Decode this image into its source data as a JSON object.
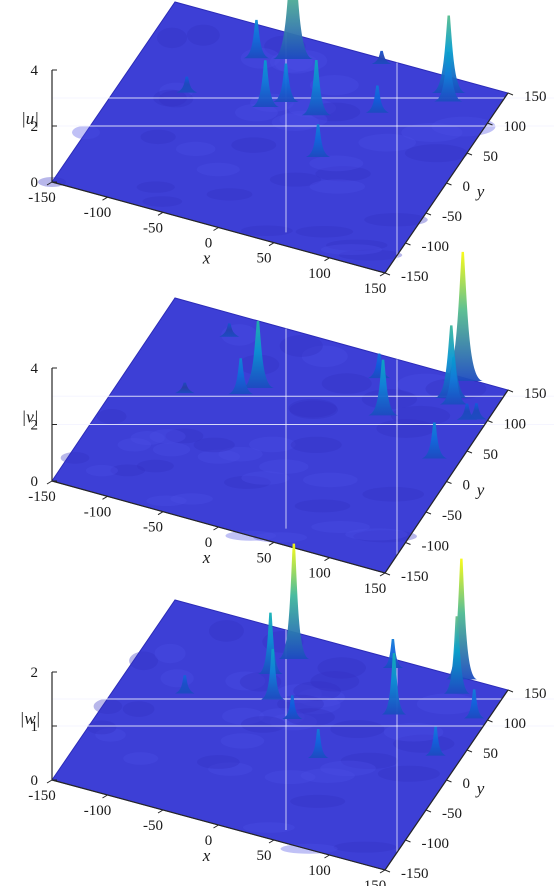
{
  "chart_data": [
    {
      "type": "surface",
      "zlabel": "|u|",
      "xlabel": "x",
      "ylabel": "y",
      "xlim": [
        -150,
        150
      ],
      "ylim": [
        -150,
        150
      ],
      "zlim": [
        0,
        4
      ],
      "xticks": [
        "-150",
        "-100",
        "-50",
        "0",
        "50",
        "100",
        "150"
      ],
      "yticks": [
        "-150",
        "-100",
        "-50",
        "0",
        "50",
        "100",
        "150"
      ],
      "zticks": [
        "0",
        "2",
        "4"
      ],
      "grid": true,
      "colormap": "parula",
      "peaks": [
        {
          "x": -32,
          "y": 118,
          "z": 4.5
        },
        {
          "x": -60,
          "y": 105,
          "z": 1.3
        },
        {
          "x": -28,
          "y": 40,
          "z": 1.6
        },
        {
          "x": -15,
          "y": 55,
          "z": 1.3
        },
        {
          "x": 15,
          "y": 48,
          "z": 1.9
        },
        {
          "x": 104,
          "y": 130,
          "z": 2.7
        },
        {
          "x": 108,
          "y": 118,
          "z": 1.7
        },
        {
          "x": 60,
          "y": 75,
          "z": 0.9
        },
        {
          "x": 38,
          "y": -10,
          "z": 1.1
        },
        {
          "x": -95,
          "y": 30,
          "z": 0.5
        },
        {
          "x": 38,
          "y": 145,
          "z": 0.4
        }
      ]
    },
    {
      "type": "surface",
      "zlabel": "|v|",
      "xlabel": "x",
      "ylabel": "y",
      "xlim": [
        -150,
        150
      ],
      "ylim": [
        -150,
        150
      ],
      "zlim": [
        0,
        4
      ],
      "xticks": [
        "-150",
        "-100",
        "-50",
        "0",
        "50",
        "100",
        "150"
      ],
      "yticks": [
        "-150",
        "-100",
        "-50",
        "0",
        "50",
        "100",
        "150"
      ],
      "zticks": [
        "0",
        "2",
        "4"
      ],
      "grid": true,
      "colormap": "parula",
      "peaks": [
        {
          "x": 110,
          "y": 148,
          "z": 4.5
        },
        {
          "x": 45,
          "y": 120,
          "z": 0.8
        },
        {
          "x": 110,
          "y": 120,
          "z": 2.5
        },
        {
          "x": 115,
          "y": 112,
          "z": 1.6
        },
        {
          "x": 67,
          "y": 70,
          "z": 1.9
        },
        {
          "x": -42,
          "y": 60,
          "z": 2.3
        },
        {
          "x": -52,
          "y": 45,
          "z": 1.2
        },
        {
          "x": 128,
          "y": 30,
          "z": 1.2
        },
        {
          "x": 140,
          "y": 100,
          "z": 0.5
        },
        {
          "x": 133,
          "y": 96,
          "z": 0.5
        },
        {
          "x": -95,
          "y": 25,
          "z": 0.3
        },
        {
          "x": -90,
          "y": 120,
          "z": 0.4
        }
      ]
    },
    {
      "type": "surface",
      "zlabel": "|w|",
      "xlabel": "x",
      "ylabel": "y",
      "xlim": [
        -150,
        150
      ],
      "ylim": [
        -150,
        150
      ],
      "zlim": [
        0,
        2
      ],
      "xticks": [
        "-150",
        "-100",
        "-50",
        "0",
        "50",
        "100",
        "150"
      ],
      "yticks": [
        "-150",
        "-100",
        "-50",
        "0",
        "50",
        "100",
        "150"
      ],
      "zticks": [
        "0",
        "1",
        "2"
      ],
      "grid": true,
      "colormap": "parula",
      "peaks": [
        {
          "x": -30,
          "y": 115,
          "z": 2.1
        },
        {
          "x": -40,
          "y": 85,
          "z": 1.1
        },
        {
          "x": -25,
          "y": 50,
          "z": 0.9
        },
        {
          "x": 108,
          "y": 150,
          "z": 2.2
        },
        {
          "x": 112,
          "y": 128,
          "z": 1.4
        },
        {
          "x": 75,
          "y": 75,
          "z": 1.1
        },
        {
          "x": 40,
          "y": -15,
          "z": 0.5
        },
        {
          "x": 128,
          "y": 33,
          "z": 0.5
        },
        {
          "x": -95,
          "y": 25,
          "z": 0.3
        },
        {
          "x": 138,
          "y": 100,
          "z": 0.5
        },
        {
          "x": 50,
          "y": 140,
          "z": 0.5
        },
        {
          "x": 0,
          "y": 30,
          "z": 0.4
        }
      ]
    }
  ]
}
